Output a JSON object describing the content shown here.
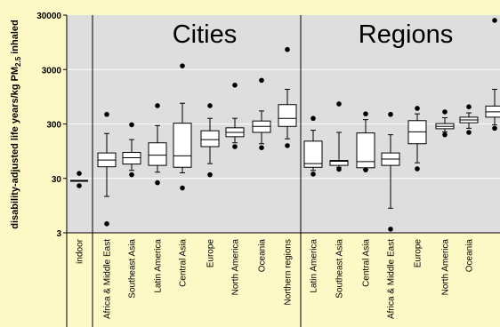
{
  "chart_data": {
    "type": "box",
    "ylabel_main": "disability-adjusted life years/kg PM",
    "ylabel_sub": "2.5",
    "ylabel_tail": " inhaled",
    "yscale": "log",
    "ylim": [
      3,
      30000
    ],
    "yticks": [
      3,
      30,
      300,
      3000,
      30000
    ],
    "ytick_labels": [
      "3",
      "30",
      "300",
      "3000",
      "30000"
    ],
    "grid": "horizontal",
    "panels": [
      {
        "label": "Cities"
      },
      {
        "label": "Regions"
      }
    ],
    "categories": [
      "indoor",
      "Africa & Middle East",
      "Southeast Asia",
      "Latin America",
      "Central Asia",
      "Europe",
      "North America",
      "Oceania",
      "Northern regions",
      "Latin America",
      "Southeast Asia",
      "Central Asia",
      "Africa & Middle East",
      "Europe",
      "North America",
      "Oceania"
    ],
    "boxes": [
      {
        "group": "indoor",
        "median": 27,
        "q1": 27,
        "q3": 27,
        "whisker_low": 27,
        "whisker_high": 27,
        "outliers": [
          22,
          37
        ]
      },
      {
        "group": "Cities",
        "median": 65,
        "q1": 49,
        "q3": 88,
        "whisker_low": 14,
        "whisker_high": 200,
        "outliers": [
          4.4,
          450
        ]
      },
      {
        "group": "Cities",
        "median": 72,
        "q1": 55,
        "q3": 90,
        "whisker_low": 42,
        "whisker_high": 155,
        "outliers": [
          35,
          290
        ]
      },
      {
        "group": "Cities",
        "median": 80,
        "q1": 52,
        "q3": 135,
        "whisker_low": 39,
        "whisker_high": 280,
        "outliers": [
          25,
          650
        ]
      },
      {
        "group": "Cities",
        "median": 78,
        "q1": 48,
        "q3": 310,
        "whisker_low": 38,
        "whisker_high": 720,
        "outliers": [
          20,
          3500
        ]
      },
      {
        "group": "Cities",
        "median": 155,
        "q1": 115,
        "q3": 225,
        "whisker_low": 56,
        "whisker_high": 380,
        "outliers": [
          35,
          650
        ]
      },
      {
        "group": "Cities",
        "median": 210,
        "q1": 175,
        "q3": 255,
        "whisker_low": 135,
        "whisker_high": 380,
        "outliers": [
          115,
          1550
        ]
      },
      {
        "group": "Cities",
        "median": 270,
        "q1": 210,
        "q3": 340,
        "whisker_low": 130,
        "whisker_high": 520,
        "outliers": [
          110,
          1900
        ]
      },
      {
        "group": "Cities",
        "median": 380,
        "q1": 270,
        "q3": 680,
        "whisker_low": 160,
        "whisker_high": 1300,
        "outliers": [
          120,
          7000
        ]
      },
      {
        "group": "Regions",
        "median": 56,
        "q1": 48,
        "q3": 145,
        "whisker_low": 42,
        "whisker_high": 230,
        "outliers": [
          36,
          380
        ]
      },
      {
        "group": "Regions",
        "median": 62,
        "q1": 52,
        "q3": 64,
        "whisker_low": 48,
        "whisker_high": 210,
        "outliers": [
          44,
          700
        ]
      },
      {
        "group": "Regions",
        "median": 61,
        "q1": 47,
        "q3": 205,
        "whisker_low": 44,
        "whisker_high": 360,
        "outliers": [
          43,
          460
        ]
      },
      {
        "group": "Regions",
        "median": 68,
        "q1": 52,
        "q3": 88,
        "whisker_low": 8.5,
        "whisker_high": 190,
        "outliers": [
          3.5,
          450
        ]
      },
      {
        "group": "Regions",
        "median": 215,
        "q1": 130,
        "q3": 345,
        "whisker_low": 58,
        "whisker_high": 460,
        "outliers": [
          45,
          580
        ]
      },
      {
        "group": "Regions",
        "median": 270,
        "q1": 245,
        "q3": 305,
        "whisker_low": 215,
        "whisker_high": 390,
        "outliers": [
          190,
          500
        ]
      },
      {
        "group": "Regions",
        "median": 355,
        "q1": 315,
        "q3": 400,
        "whisker_low": 250,
        "whisker_high": 480,
        "outliers": [
          210,
          620
        ]
      },
      {
        "group": "Regions",
        "median": 500,
        "q1": 400,
        "q3": 640,
        "whisker_low": 290,
        "whisker_high": 1300,
        "outliers": [
          250,
          24000
        ]
      }
    ]
  },
  "colors": {
    "background": "#fdf9c6",
    "plot_area": "#dedede",
    "box_fill": "#ffffff",
    "stroke": "#000000",
    "grid": "#ffffff"
  }
}
